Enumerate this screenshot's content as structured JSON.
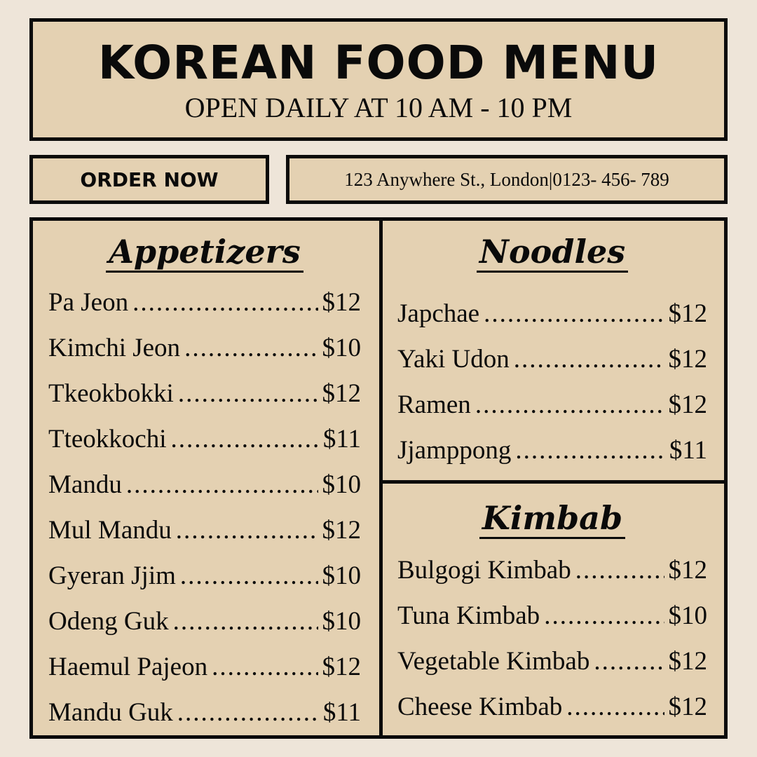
{
  "header": {
    "title": "KOREAN FOOD MENU",
    "hours": "OPEN DAILY AT 10 AM - 10 PM"
  },
  "order_button": "ORDER NOW",
  "contact": {
    "address": "123 Anywhere St., London",
    "separator": "|",
    "phone": "0123- 456- 789"
  },
  "colors": {
    "background": "#EEE5D9",
    "panel": "#E4D1B2",
    "ink": "#0a0a0a"
  },
  "sections": {
    "appetizers": {
      "title": "Appetizers",
      "items": [
        {
          "name": "Pa Jeon",
          "price": "$12"
        },
        {
          "name": "Kimchi Jeon",
          "price": "$10"
        },
        {
          "name": "Tkeokbokki",
          "price": "$12"
        },
        {
          "name": "Tteokkochi",
          "price": "$11"
        },
        {
          "name": "Mandu",
          "price": "$10"
        },
        {
          "name": "Mul Mandu",
          "price": "$12"
        },
        {
          "name": "Gyeran Jjim",
          "price": "$10"
        },
        {
          "name": "Odeng Guk",
          "price": "$10"
        },
        {
          "name": "Haemul Pajeon",
          "price": "$12"
        },
        {
          "name": "Mandu Guk",
          "price": "$11"
        }
      ]
    },
    "noodles": {
      "title": "Noodles",
      "items": [
        {
          "name": "Japchae",
          "price": "$12"
        },
        {
          "name": "Yaki Udon",
          "price": "$12"
        },
        {
          "name": "Ramen",
          "price": "$12"
        },
        {
          "name": "Jjamppong",
          "price": "$11"
        }
      ]
    },
    "kimbab": {
      "title": "Kimbab",
      "items": [
        {
          "name": "Bulgogi Kimbab",
          "price": "$12"
        },
        {
          "name": "Tuna Kimbab",
          "price": "$10"
        },
        {
          "name": "Vegetable Kimbab",
          "price": "$12"
        },
        {
          "name": "Cheese Kimbab",
          "price": "$12"
        }
      ]
    }
  }
}
